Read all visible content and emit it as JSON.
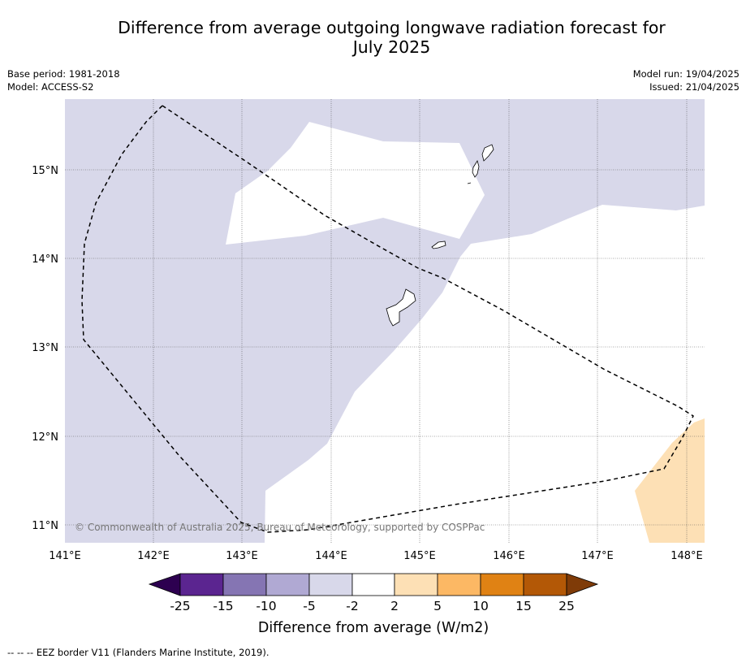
{
  "title_line1": "Difference from average outgoing longwave radiation forecast for",
  "title_line2": "July 2025",
  "base_period": "Base period: 1981-2018",
  "model": "Model: ACCESS-S2",
  "model_run": "Model run: 19/04/2025",
  "issued": "Issued: 21/04/2025",
  "map": {
    "x_ticks": [
      "141°E",
      "142°E",
      "143°E",
      "144°E",
      "145°E",
      "146°E",
      "147°E",
      "148°E"
    ],
    "y_ticks": [
      "15°N",
      "14°N",
      "13°N",
      "12°N",
      "11°N"
    ],
    "copyright": "© Commonwealth of Australia 2025, Bureau of Meteorology, supported by COSPPac"
  },
  "colorbar": {
    "label": "Difference from average (W/m2)",
    "ticks": [
      "-25",
      "-15",
      "-10",
      "-5",
      "-2",
      "2",
      "5",
      "10",
      "15",
      "25"
    ],
    "colors": [
      "#2d0050",
      "#5b2590",
      "#8575b3",
      "#b0a9d3",
      "#d8d8ea",
      "#ffffff",
      "#fde0b5",
      "#fcb864",
      "#e08214",
      "#b35806",
      "#7f3b08"
    ]
  },
  "footer": "--  --  -- EEZ border V11 (Flanders Marine Institute, 2019).",
  "colors": {
    "light_purple": "#d8d8ea",
    "light_orange": "#fde0b5"
  }
}
